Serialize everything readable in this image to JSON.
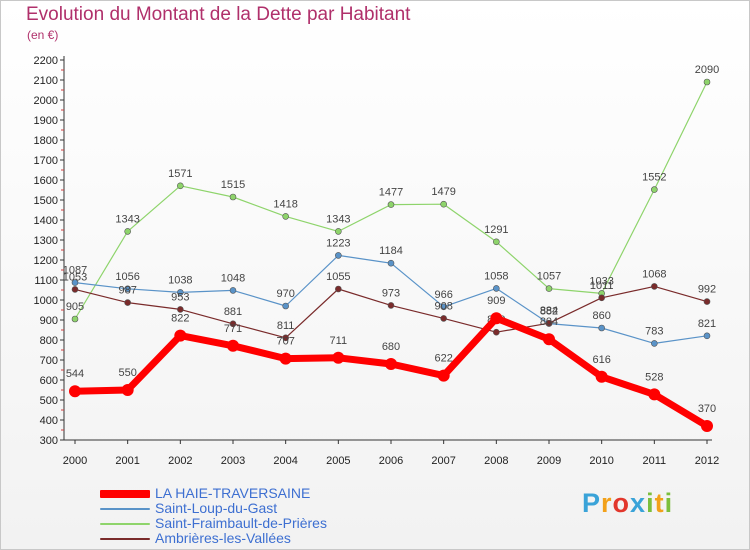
{
  "title": "Evolution du Montant de la Dette par Habitant",
  "unit": "(en €)",
  "logo": "Proxiti",
  "logo_letters": [
    {
      "ch": "P",
      "color": "#3aa3d8"
    },
    {
      "ch": "r",
      "color": "#f2a11a"
    },
    {
      "ch": "o",
      "color": "#e2372c"
    },
    {
      "ch": "x",
      "color": "#3aa3d8"
    },
    {
      "ch": "i",
      "color": "#7cbf3c"
    },
    {
      "ch": "t",
      "color": "#f2a11a"
    },
    {
      "ch": "i",
      "color": "#7cbf3c"
    }
  ],
  "chart_data": {
    "type": "line",
    "title": "Evolution du Montant de la Dette par Habitant",
    "ylabel": "(en €)",
    "xlabel": "",
    "ylim": [
      300,
      2200
    ],
    "yticks": [
      300,
      400,
      500,
      600,
      700,
      800,
      900,
      1000,
      1100,
      1200,
      1300,
      1400,
      1500,
      1600,
      1700,
      1800,
      1900,
      2000,
      2100,
      2200
    ],
    "x": [
      2000,
      2001,
      2002,
      2003,
      2004,
      2005,
      2006,
      2007,
      2008,
      2009,
      2010,
      2011,
      2012
    ],
    "grid": false,
    "legend_position": "bottom-left",
    "series": [
      {
        "name": "Saint-Fraimbault-de-Prières",
        "color": "#8ed46b",
        "values": [
          905,
          1343,
          1571,
          1515,
          1418,
          1343,
          1477,
          1479,
          1291,
          1057,
          1033,
          1552,
          2090
        ]
      },
      {
        "name": "Saint-Loup-du-Gast",
        "color": "#5a93c8",
        "values": [
          1087,
          1056,
          1038,
          1048,
          970,
          1223,
          1184,
          966,
          1058,
          882,
          860,
          783,
          821
        ]
      },
      {
        "name": "Ambrières-les-Vallées",
        "color": "#7a2b2b",
        "values": [
          1053,
          987,
          953,
          881,
          811,
          1055,
          973,
          908,
          839,
          884,
          1011,
          1068,
          992
        ]
      },
      {
        "name": "LA HAIE-TRAVERSAINE",
        "color": "#ff0000",
        "values": [
          544,
          550,
          822,
          771,
          707,
          711,
          680,
          622,
          909,
          804,
          616,
          528,
          370
        ]
      }
    ]
  }
}
